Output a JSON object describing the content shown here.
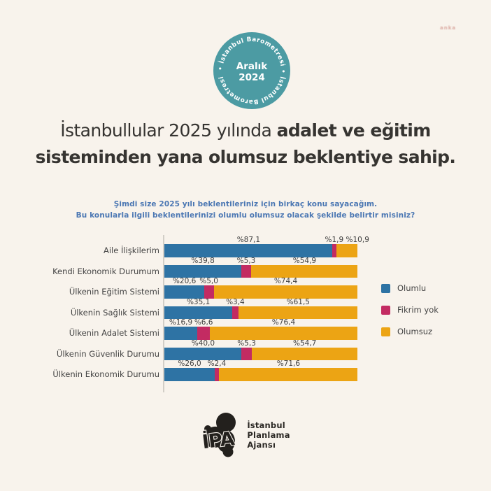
{
  "watermark": "anka",
  "badge": {
    "ring_text": "• İstanbul Barometresi • İstanbul Barometresi",
    "center_line1": "Aralık",
    "center_line2": "2024",
    "bg_color": "#4C9BA3"
  },
  "title": {
    "line1_regular": "İstanbullular 2025 yılında",
    "line1_bold": "adalet ve eğitim",
    "line2_bold": "sisteminden yana olumsuz beklentiye sahip."
  },
  "subtitle": {
    "line1": "Şimdi size 2025 yılı beklentileriniz için birkaç konu sayacağım.",
    "line2": "Bu konularla ilgili beklentilerinizi olumlu olumsuz olacak şekilde belirtir misiniz?"
  },
  "chart_data": {
    "type": "bar",
    "orientation": "horizontal",
    "stacked": true,
    "unit": "percent",
    "xlim": [
      0,
      100
    ],
    "grid": false,
    "legend_position": "right",
    "categories": [
      "Aile İlişkilerim",
      "Kendi Ekonomik Durumum",
      "Ülkenin Eğitim Sistemi",
      "Ülkenin Sağlık Sistemi",
      "Ülkenin Adalet Sistemi",
      "Ülkenin Güvenlik Durumu",
      "Ülkenin Ekonomik Durumu"
    ],
    "series": [
      {
        "name": "Olumlu",
        "color": "#2E73A4",
        "values": [
          87.1,
          39.8,
          20.6,
          35.1,
          16.9,
          40.0,
          26.0
        ]
      },
      {
        "name": "Fikrim yok",
        "color": "#C32B62",
        "values": [
          1.9,
          5.3,
          5.0,
          3.4,
          6.6,
          5.3,
          2.4
        ]
      },
      {
        "name": "Olumsuz",
        "color": "#ECA414",
        "values": [
          10.9,
          54.9,
          74.4,
          61.5,
          76.4,
          54.7,
          71.6
        ]
      }
    ],
    "value_labels": [
      [
        "%87,1",
        "%1,9",
        "%10,9"
      ],
      [
        "%39,8",
        "%5,3",
        "%54,9"
      ],
      [
        "%20,6",
        "%5,0",
        "%74,4"
      ],
      [
        "%35,1",
        "%3,4",
        "%61,5"
      ],
      [
        "%16,9",
        "%6,6",
        "%76,4"
      ],
      [
        "%40,0",
        "%5,3",
        "%54,7"
      ],
      [
        "%26,0",
        "%2,4",
        "%71,6"
      ]
    ]
  },
  "footer": {
    "logo_text": "İPA",
    "org_line1": "İstanbul",
    "org_line2": "Planlama",
    "org_line3": "Ajansı"
  }
}
